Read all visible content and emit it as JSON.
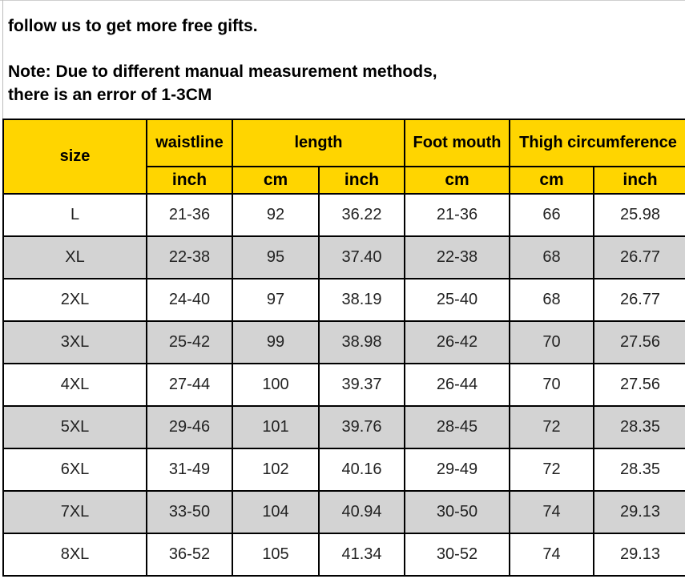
{
  "notes": {
    "line1": "follow us to get more free gifts.",
    "line2": "Note:  Due to different manual measurement methods,",
    "line3": "there is an error of 1-3CM"
  },
  "table": {
    "header_top": {
      "size": "size",
      "waistline": "waistline",
      "length": "length",
      "foot_mouth": "Foot mouth",
      "thigh": "Thigh circumference"
    },
    "header_units": [
      "inch",
      "cm",
      "inch",
      "cm",
      "cm",
      "inch"
    ],
    "rows": [
      [
        "L",
        "21-36",
        "92",
        "36.22",
        "21-36",
        "66",
        "25.98"
      ],
      [
        "XL",
        "22-38",
        "95",
        "37.40",
        "22-38",
        "68",
        "26.77"
      ],
      [
        "2XL",
        "24-40",
        "97",
        "38.19",
        "25-40",
        "68",
        "26.77"
      ],
      [
        "3XL",
        "25-42",
        "99",
        "38.98",
        "26-42",
        "70",
        "27.56"
      ],
      [
        "4XL",
        "27-44",
        "100",
        "39.37",
        "26-44",
        "70",
        "27.56"
      ],
      [
        "5XL",
        "29-46",
        "101",
        "39.76",
        "28-45",
        "72",
        "28.35"
      ],
      [
        "6XL",
        "31-49",
        "102",
        "40.16",
        "29-49",
        "72",
        "28.35"
      ],
      [
        "7XL",
        "33-50",
        "104",
        "40.94",
        "30-50",
        "74",
        "29.13"
      ],
      [
        "8XL",
        "36-52",
        "105",
        "41.34",
        "30-52",
        "74",
        "29.13"
      ]
    ]
  },
  "colors": {
    "header_bg": "#ffd500",
    "alt_row_bg": "#d3d3d3",
    "border": "#000000"
  }
}
